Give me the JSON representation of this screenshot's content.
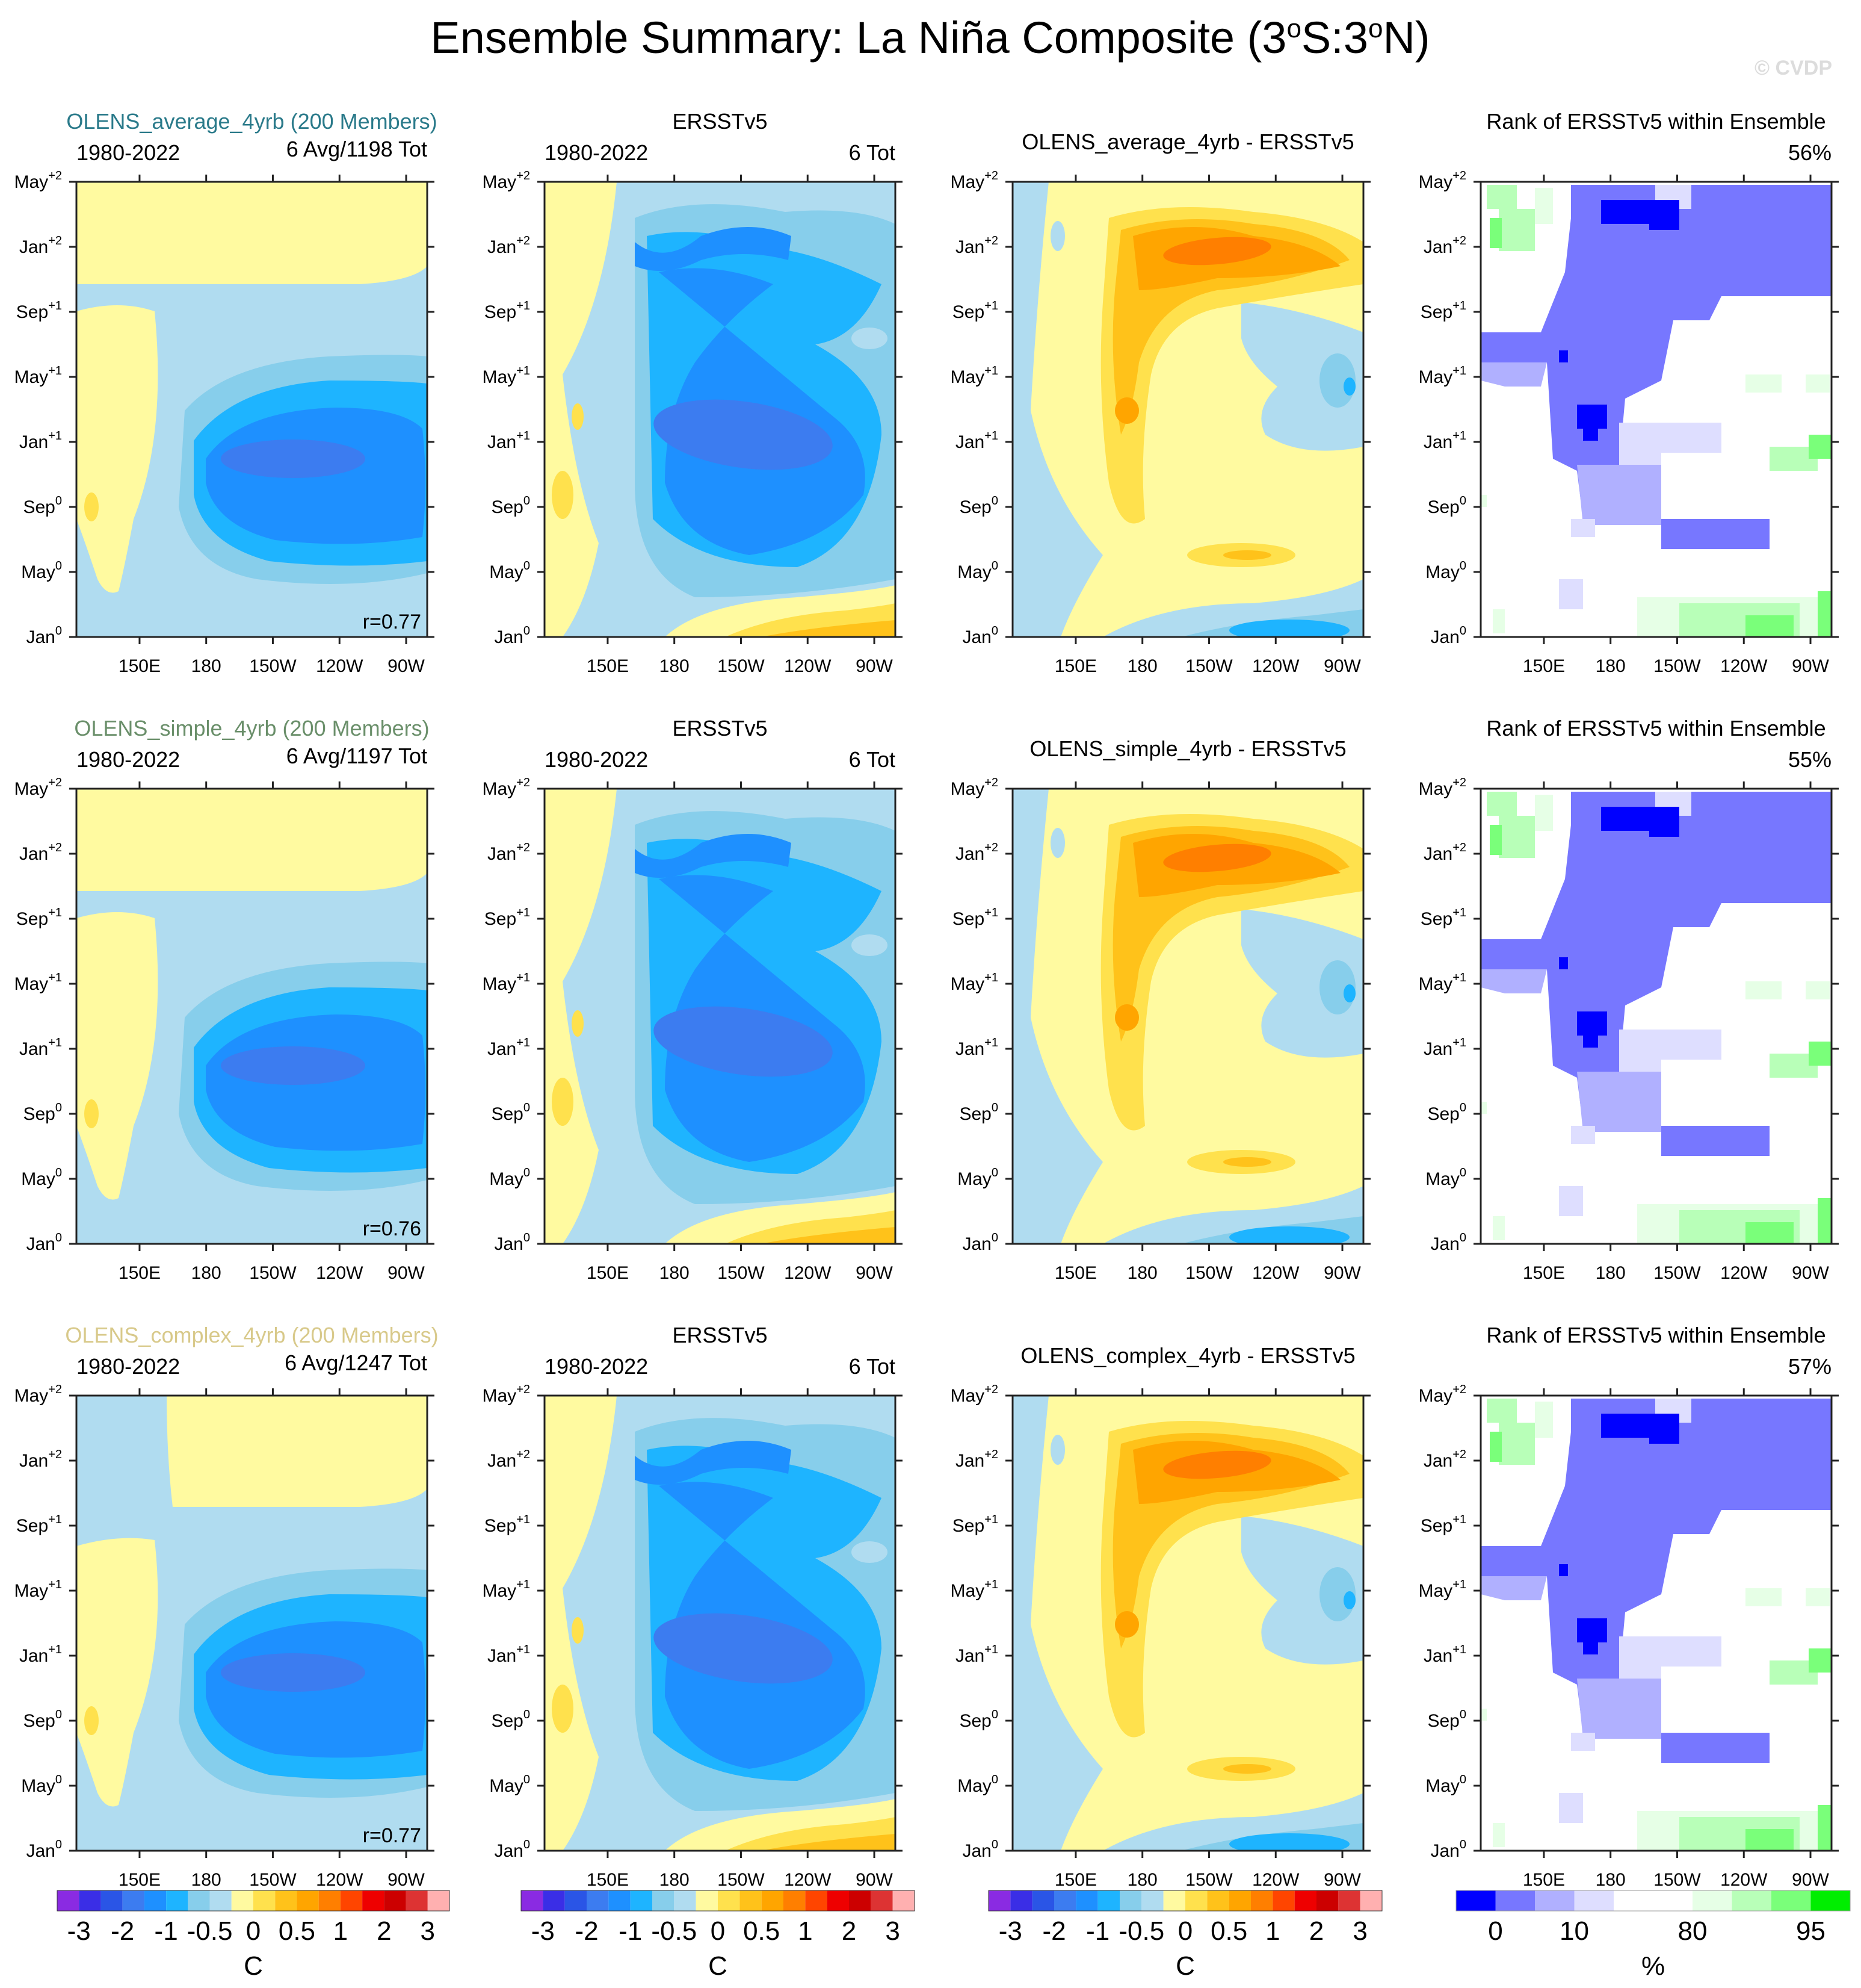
{
  "main_title": "Ensemble Summary: La Niña Composite (3°S:3°N)",
  "title_parts": {
    "prefix": "Ensemble Summary: La Niña Composite (3",
    "s": "S:3",
    "n": "N)",
    "deg": "o"
  },
  "watermark": "© CVDP",
  "colors": {
    "ensemble_avg": "#2a7a8a",
    "ensemble_simple": "#6a8f6a",
    "ensemble_complex": "#d8c98a"
  },
  "y_ticks": [
    {
      "label": "Jan",
      "sup": "0"
    },
    {
      "label": "May",
      "sup": "0"
    },
    {
      "label": "Sep",
      "sup": "0"
    },
    {
      "label": "Jan",
      "sup": "+1"
    },
    {
      "label": "May",
      "sup": "+1"
    },
    {
      "label": "Sep",
      "sup": "+1"
    },
    {
      "label": "Jan",
      "sup": "+2"
    },
    {
      "label": "May",
      "sup": "+2"
    }
  ],
  "x_ticks": [
    "150E",
    "180",
    "150W",
    "120W",
    "90W"
  ],
  "rows": [
    {
      "ensemble_title": "OLENS_average_4yrb (200 Members)",
      "ens_period": "1980-2022",
      "ens_count": "6 Avg/1198 Tot",
      "corr": "r=0.77",
      "obs_title": "ERSSTv5",
      "obs_period": "1980-2022",
      "obs_count": "6 Tot",
      "diff_title": "OLENS_average_4yrb - ERSSTv5",
      "rank_title": "Rank of ERSSTv5 within Ensemble",
      "rank_pct": "56%"
    },
    {
      "ensemble_title": "OLENS_simple_4yrb (200 Members)",
      "ens_period": "1980-2022",
      "ens_count": "6 Avg/1197 Tot",
      "corr": "r=0.76",
      "obs_title": "ERSSTv5",
      "obs_period": "1980-2022",
      "obs_count": "6 Tot",
      "diff_title": "OLENS_simple_4yrb - ERSSTv5",
      "rank_title": "Rank of ERSSTv5 within Ensemble",
      "rank_pct": "55%"
    },
    {
      "ensemble_title": "OLENS_complex_4yrb (200 Members)",
      "ens_period": "1980-2022",
      "ens_count": "6 Avg/1247 Tot",
      "corr": "r=0.77",
      "obs_title": "ERSSTv5",
      "obs_period": "1980-2022",
      "obs_count": "6 Tot",
      "diff_title": "OLENS_complex_4yrb - ERSSTv5",
      "rank_title": "Rank of ERSSTv5 within Ensemble",
      "rank_pct": "57%"
    }
  ],
  "sst_colorbar": {
    "colors": [
      "#8a2be2",
      "#3a2ee6",
      "#2a55e6",
      "#3c7cf0",
      "#1e90ff",
      "#1eb4ff",
      "#87ceeb",
      "#b0dcf0",
      "#fffaa0",
      "#ffe14d",
      "#ffc21a",
      "#ffa500",
      "#ff7f00",
      "#ff4500",
      "#ee0000",
      "#cc0000",
      "#dd3333",
      "#ffb0b0"
    ],
    "labels": [
      "-3",
      "-2",
      "-1",
      "-0.5",
      "0",
      "0.5",
      "1",
      "2",
      "3"
    ],
    "unit": "C"
  },
  "rank_colorbar": {
    "colors": [
      "#0000ff",
      "#7777ff",
      "#b0b0ff",
      "#dedeff",
      "#ffffff",
      "#ffffff",
      "#e6ffe6",
      "#b8ffb8",
      "#7aff7a",
      "#00ee00"
    ],
    "labels": [
      "0",
      "10",
      "80",
      "95"
    ],
    "unit": "%"
  }
}
